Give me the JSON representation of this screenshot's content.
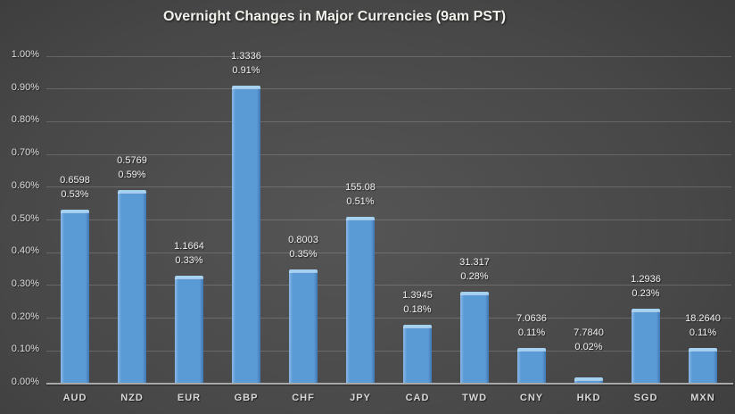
{
  "chart_data": {
    "type": "bar",
    "title": "Overnight Changes in Major Currencies (9am PST)",
    "categories": [
      "AUD",
      "NZD",
      "EUR",
      "GBP",
      "CHF",
      "JPY",
      "CAD",
      "TWD",
      "CNY",
      "HKD",
      "SGD",
      "MXN"
    ],
    "values": [
      0.53,
      0.59,
      0.33,
      0.91,
      0.35,
      0.51,
      0.18,
      0.28,
      0.11,
      0.02,
      0.23,
      0.11
    ],
    "rate_labels": [
      "0.6598",
      "0.5769",
      "1.1664",
      "1.3336",
      "0.8003",
      "155.08",
      "1.3945",
      "31.317",
      "7.0636",
      "7.7840",
      "1.2936",
      "18.2640"
    ],
    "pct_labels": [
      "0.53%",
      "0.59%",
      "0.33%",
      "0.91%",
      "0.35%",
      "0.51%",
      "0.18%",
      "0.28%",
      "0.11%",
      "0.02%",
      "0.23%",
      "0.11%"
    ],
    "xlabel": "",
    "ylabel": "",
    "ylim": [
      0,
      1.0
    ],
    "ytick_step": 0.1,
    "ytick_labels": [
      "0.00%",
      "0.10%",
      "0.20%",
      "0.30%",
      "0.40%",
      "0.50%",
      "0.60%",
      "0.70%",
      "0.80%",
      "0.90%",
      "1.00%"
    ],
    "grid": true,
    "legend_position": "none",
    "colors": {
      "bar_fill": "#5B9BD5",
      "bar_highlight": "#A6D2F2",
      "bar_edge_dark": "#3E76B4",
      "bar_edge_light": "#8AB9E8",
      "gridline": "#5D5D5D",
      "axis_line": "#A9A9A9",
      "tick_text": "#DCDCDC",
      "label_text": "#F0F0F0",
      "title_text": "#F1F1EC",
      "background_center": "#555555",
      "background_corner": "#262626"
    }
  }
}
